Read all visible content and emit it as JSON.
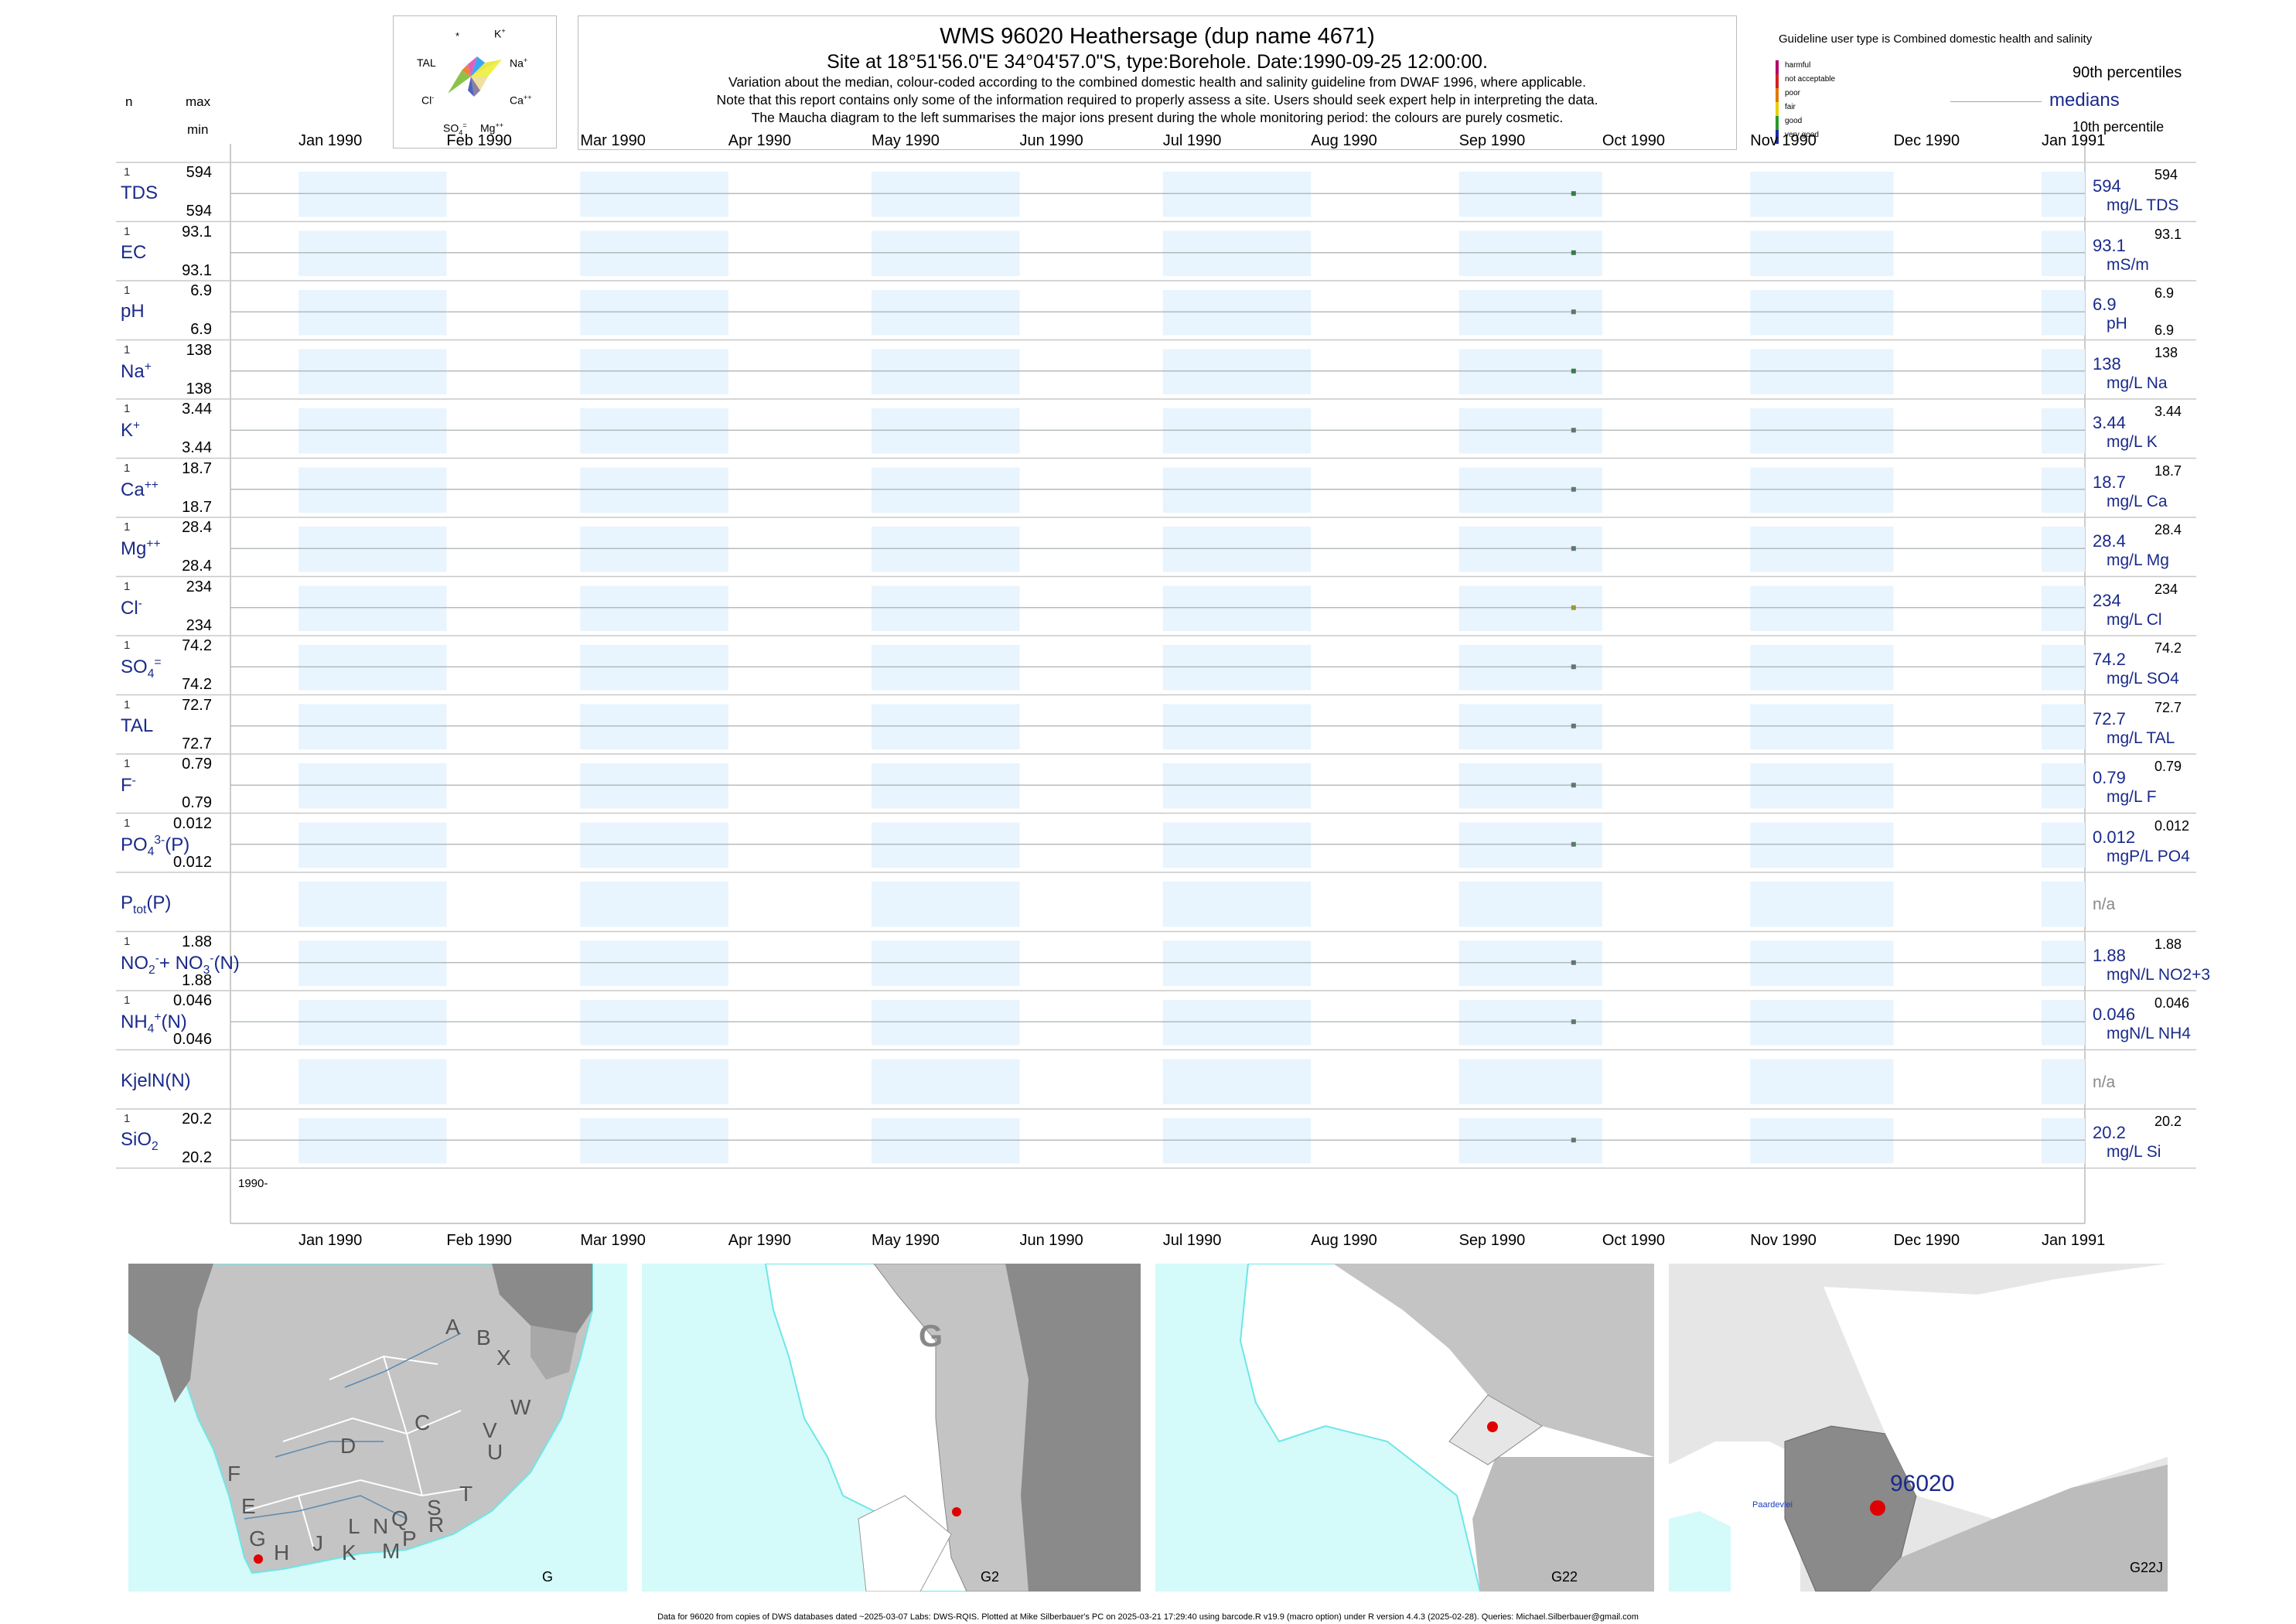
{
  "header": {
    "title": "WMS 96020  Heathersage (dup name 4671)",
    "site": "Site at 18°51'56.0\"E 34°04'57.0\"S, type:Borehole. Date:1990-09-25 12:00:00.",
    "note1": "Variation about the median,  colour-coded according to the combined domestic health and salinity guideline from DWAF 1996, where applicable.",
    "note2": "Note that this report contains only some of the information required to properly assess a site. Users should seek expert help in interpreting the data.",
    "note3": "The Maucha diagram to the left summarises the major ions present during the whole monitoring period: the colours are purely cosmetic."
  },
  "maucha": {
    "star": "*",
    "k": "K",
    "ksup": "+",
    "tal": "TAL",
    "na": "Na",
    "nasup": "+",
    "cl": "Cl",
    "clsup": "-",
    "ca": "Ca",
    "casup": "++",
    "so4": "SO",
    "so4sub": "4",
    "so4sup": "=",
    "mg": "Mg",
    "mgsup": "++"
  },
  "legend": {
    "user_type": "Guideline user type is Combined domestic health and salinity",
    "categories": [
      "harmful",
      "not acceptable",
      "poor",
      "fair",
      "good",
      "very good"
    ],
    "category_colors": [
      "#b0006a",
      "#d42020",
      "#e07800",
      "#e8d000",
      "#2a9a2a",
      "#1a2aa0"
    ],
    "p90": "90th percentiles",
    "medians": "medians",
    "p10": "10th percentile"
  },
  "left_headers": {
    "n": "n",
    "max": "max",
    "min": "min"
  },
  "months": [
    "Jan 1990",
    "Feb 1990",
    "Mar 1990",
    "Apr 1990",
    "May 1990",
    "Jun 1990",
    "Jul 1990",
    "Aug 1990",
    "Sep 1990",
    "Oct 1990",
    "Nov 1990",
    "Dec 1990",
    "Jan 1991"
  ],
  "year_label": "1990-",
  "rows": [
    {
      "label": "TDS",
      "n": "1",
      "max": "594",
      "min": "594",
      "value": "594",
      "unit": "mg/L TDS",
      "rmax": "594",
      "rmin": "",
      "color": "#3a7a4a"
    },
    {
      "label": "EC",
      "n": "1",
      "max": "93.1",
      "min": "93.1",
      "value": "93.1",
      "unit": "mS/m",
      "rmax": "93.1",
      "rmin": "",
      "color": "#3a7a4a"
    },
    {
      "label": "pH",
      "n": "1",
      "max": "6.9",
      "min": "6.9",
      "value": "6.9",
      "unit": "pH",
      "rmax": "6.9",
      "rmin": "6.9",
      "color": "#5a7a6a"
    },
    {
      "label": "Na",
      "sup": "+",
      "n": "1",
      "max": "138",
      "min": "138",
      "value": "138",
      "unit": "mg/L Na",
      "rmax": "138",
      "rmin": "",
      "color": "#3a7a4a"
    },
    {
      "label": "K",
      "sup": "+",
      "n": "1",
      "max": "3.44",
      "min": "3.44",
      "value": "3.44",
      "unit": "mg/L K",
      "rmax": "3.44",
      "rmin": "",
      "color": "#5a7a6a"
    },
    {
      "label": "Ca",
      "sup": "++",
      "n": "1",
      "max": "18.7",
      "min": "18.7",
      "value": "18.7",
      "unit": "mg/L Ca",
      "rmax": "18.7",
      "rmin": "",
      "color": "#5a7a6a"
    },
    {
      "label": "Mg",
      "sup": "++",
      "n": "1",
      "max": "28.4",
      "min": "28.4",
      "value": "28.4",
      "unit": "mg/L Mg",
      "rmax": "28.4",
      "rmin": "",
      "color": "#5a7a6a"
    },
    {
      "label": "Cl",
      "sup": "-",
      "n": "1",
      "max": "234",
      "min": "234",
      "value": "234",
      "unit": "mg/L Cl",
      "rmax": "234",
      "rmin": "",
      "color": "#9a9a2a"
    },
    {
      "label": "SO",
      "sub": "4",
      "sup": "=",
      "n": "1",
      "max": "74.2",
      "min": "74.2",
      "value": "74.2",
      "unit": "mg/L SO4",
      "rmax": "74.2",
      "rmin": "",
      "color": "#5a7a6a"
    },
    {
      "label": "TAL",
      "n": "1",
      "max": "72.7",
      "min": "72.7",
      "value": "72.7",
      "unit": "mg/L TAL",
      "rmax": "72.7",
      "rmin": "",
      "color": "#5a7a6a"
    },
    {
      "label": "F",
      "sup": "-",
      "n": "1",
      "max": "0.79",
      "min": "0.79",
      "value": "0.79",
      "unit": "mg/L F",
      "rmax": "0.79",
      "rmin": "",
      "color": "#5a7a6a"
    },
    {
      "label": "PO",
      "sub": "4",
      "sup": "3-",
      "tail": "(P)",
      "n": "1",
      "max": "0.012",
      "min": "0.012",
      "value": "0.012",
      "unit": "mgP/L PO4",
      "rmax": "0.012",
      "rmin": "",
      "color": "#5a7a6a"
    },
    {
      "label": "P",
      "sub": "tot",
      "tail": "(P)",
      "n": "",
      "max": "",
      "min": "",
      "value": "",
      "unit": "",
      "rmax": "",
      "rmin": "",
      "na": "n/a",
      "color": ""
    },
    {
      "label": "NO",
      "sub": "2",
      "sup": "-",
      "tail": "+ NO",
      "sub2": "3",
      "sup2": "-",
      "tail2": "(N)",
      "n": "1",
      "max": "1.88",
      "min": "1.88",
      "value": "1.88",
      "unit": "mgN/L NO2+3",
      "rmax": "1.88",
      "rmin": "",
      "color": "#5a7a6a"
    },
    {
      "label": "NH",
      "sub": "4",
      "sup": "+",
      "tail": "(N)",
      "n": "1",
      "max": "0.046",
      "min": "0.046",
      "value": "0.046",
      "unit": "mgN/L NH4",
      "rmax": "0.046",
      "rmin": "",
      "color": "#5a7a6a"
    },
    {
      "label": "KjelN(N)",
      "n": "",
      "max": "",
      "min": "",
      "value": "",
      "unit": "",
      "rmax": "",
      "rmin": "",
      "na": "n/a",
      "color": ""
    },
    {
      "label": "SiO",
      "sub": "2",
      "n": "1",
      "max": "20.2",
      "min": "20.2",
      "value": "20.2",
      "unit": "mg/L Si",
      "rmax": "20.2",
      "rmin": "",
      "color": "#5a7a6a"
    }
  ],
  "chart_data": {
    "type": "scatter",
    "title": "WMS 96020  Heathersage (dup name 4671)",
    "x_range": [
      "1990-01-01",
      "1991-01-01"
    ],
    "sample_date": "1990-09-25",
    "series": [
      {
        "name": "TDS",
        "x": [
          "1990-09-25"
        ],
        "values": [
          594
        ]
      },
      {
        "name": "EC",
        "x": [
          "1990-09-25"
        ],
        "values": [
          93.1
        ]
      },
      {
        "name": "pH",
        "x": [
          "1990-09-25"
        ],
        "values": [
          6.9
        ]
      },
      {
        "name": "Na",
        "x": [
          "1990-09-25"
        ],
        "values": [
          138
        ]
      },
      {
        "name": "K",
        "x": [
          "1990-09-25"
        ],
        "values": [
          3.44
        ]
      },
      {
        "name": "Ca",
        "x": [
          "1990-09-25"
        ],
        "values": [
          18.7
        ]
      },
      {
        "name": "Mg",
        "x": [
          "1990-09-25"
        ],
        "values": [
          28.4
        ]
      },
      {
        "name": "Cl",
        "x": [
          "1990-09-25"
        ],
        "values": [
          234
        ]
      },
      {
        "name": "SO4",
        "x": [
          "1990-09-25"
        ],
        "values": [
          74.2
        ]
      },
      {
        "name": "TAL",
        "x": [
          "1990-09-25"
        ],
        "values": [
          72.7
        ]
      },
      {
        "name": "F",
        "x": [
          "1990-09-25"
        ],
        "values": [
          0.79
        ]
      },
      {
        "name": "PO4(P)",
        "x": [
          "1990-09-25"
        ],
        "values": [
          0.012
        ]
      },
      {
        "name": "NO2+NO3(N)",
        "x": [
          "1990-09-25"
        ],
        "values": [
          1.88
        ]
      },
      {
        "name": "NH4(N)",
        "x": [
          "1990-09-25"
        ],
        "values": [
          0.046
        ]
      },
      {
        "name": "SiO2",
        "x": [
          "1990-09-25"
        ],
        "values": [
          20.2
        ]
      }
    ]
  },
  "maps": {
    "m1_letters": [
      "A",
      "B",
      "X",
      "W",
      "C",
      "V",
      "U",
      "D",
      "T",
      "F",
      "E",
      "S",
      "R",
      "Q",
      "N",
      "L",
      "M",
      "P",
      "K",
      "J",
      "H",
      "G"
    ],
    "m1_label": "G",
    "m2_big": "G",
    "m2_label": "G2",
    "m3_label": "G22",
    "m4_site": "96020",
    "m4_place": "Paardevlei",
    "m4_label": "G22J",
    "colors": {
      "sea": "#d4fafa",
      "coast": "#6fe6e6",
      "land": "#c4c4c4",
      "dark": "#8a8a8a",
      "white": "#ffffff",
      "site": "#e00000"
    }
  },
  "footer": "Data for 96020 from copies of DWS databases dated ~2025-03-07 Labs: DWS-RQIS. Plotted at Mike Silberbauer's PC on 2025-03-21 17:29:40 using barcode.R v19.9 (macro option) under R version 4.4.3 (2025-02-28). Queries: Michael.Silberbauer@gmail.com"
}
